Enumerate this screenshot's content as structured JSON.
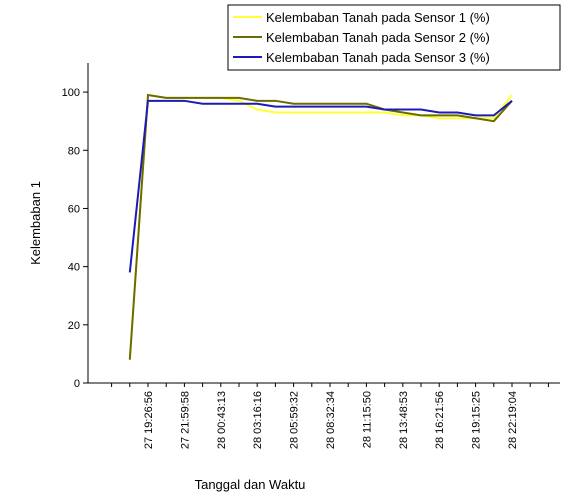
{
  "chart_data": {
    "type": "line",
    "x_label": "Tanggal dan Waktu",
    "y_label": "Kelembaban 1",
    "categories": [
      null,
      null,
      "27 19:26:56",
      null,
      "27 21:59:58",
      null,
      "28 00:43:13",
      null,
      "28 03:16:16",
      null,
      "28 05:59:32",
      null,
      "28 08:32:34",
      null,
      "28 11:15:50",
      null,
      "28 13:48:53",
      null,
      "28 16:21:56",
      null,
      "28 19:15:25",
      null,
      "28 22:19:04",
      null,
      null
    ],
    "series": [
      {
        "name": "Kelembaban Tanah pada Sensor 1 (%)",
        "color": "#ffff33",
        "values": [
          null,
          8,
          99,
          98,
          98,
          98,
          98,
          97,
          94,
          93,
          93,
          93,
          93,
          93,
          93,
          93,
          92,
          92,
          91,
          91,
          91,
          91,
          99,
          null,
          null
        ]
      },
      {
        "name": "Kelembaban Tanah pada Sensor 2 (%)",
        "color": "#6b6b00",
        "values": [
          null,
          8,
          99,
          98,
          98,
          98,
          98,
          98,
          97,
          97,
          96,
          96,
          96,
          96,
          96,
          94,
          93,
          92,
          92,
          92,
          91,
          90,
          97,
          null,
          null
        ]
      },
      {
        "name": "Kelembaban Tanah pada Sensor 3 (%)",
        "color": "#1c1cb4",
        "values": [
          null,
          38,
          97,
          97,
          97,
          96,
          96,
          96,
          96,
          95,
          95,
          95,
          95,
          95,
          95,
          94,
          94,
          94,
          93,
          93,
          92,
          92,
          97,
          null,
          null
        ]
      }
    ],
    "ylim": [
      0,
      110
    ],
    "yticks": [
      0,
      20,
      40,
      60,
      80,
      100
    ],
    "legend": "top-right",
    "grid": false
  }
}
